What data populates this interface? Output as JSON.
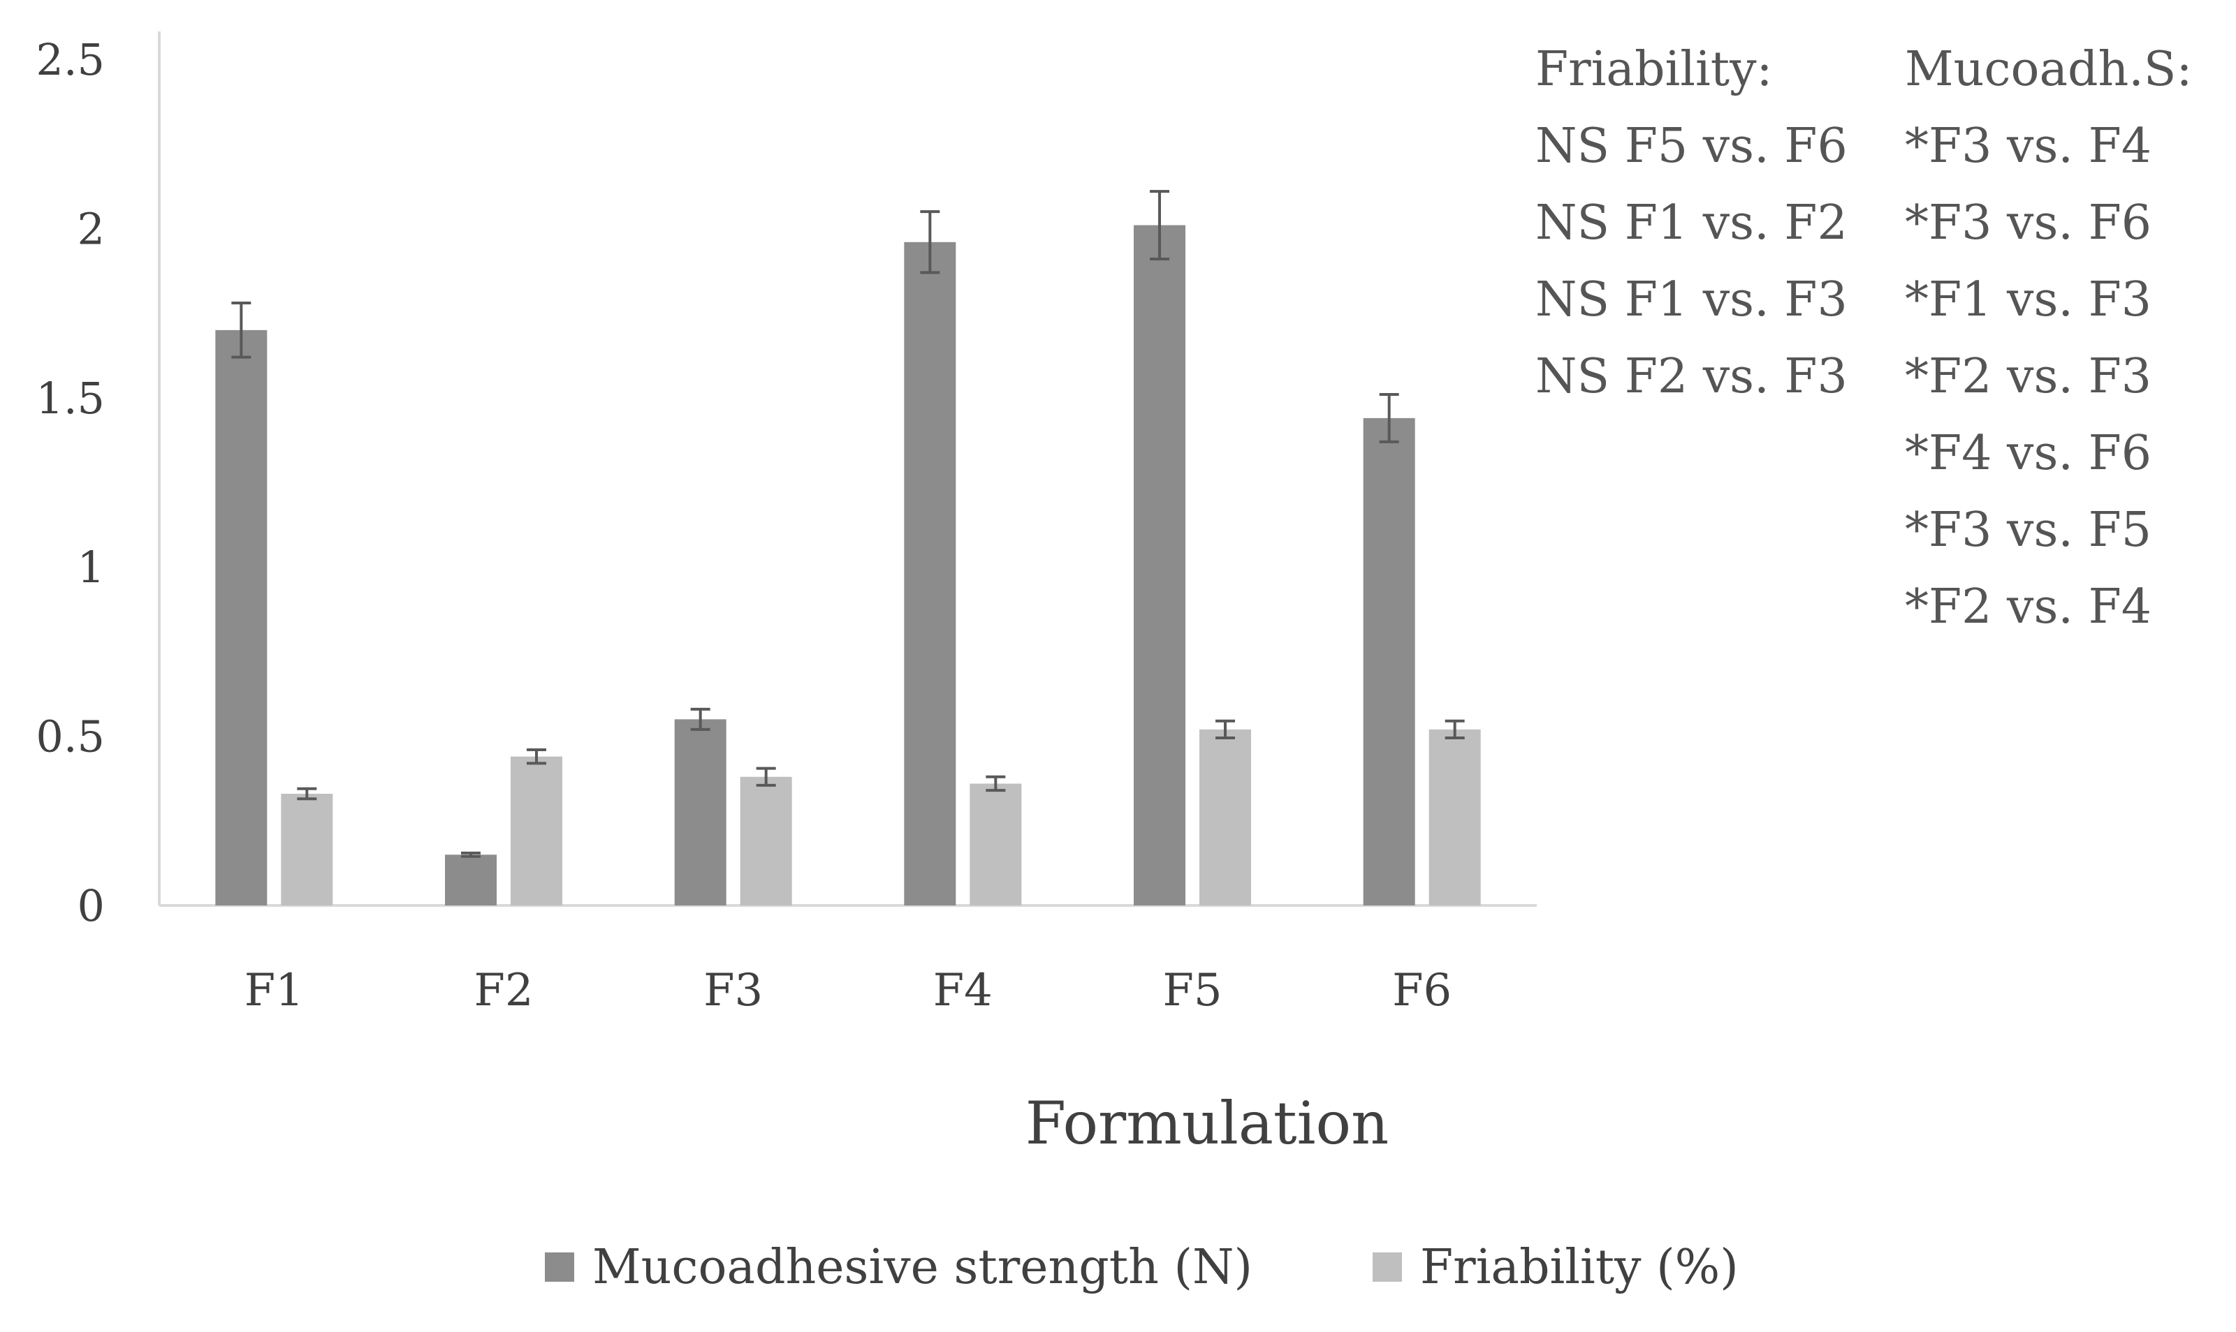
{
  "chart_data": {
    "type": "bar",
    "title": "",
    "xlabel": "Formulation",
    "ylabel": "",
    "ylim": [
      0,
      2.5
    ],
    "yticks": [
      "0",
      "0.5",
      "1",
      "1.5",
      "2",
      "2.5"
    ],
    "categories": [
      "F1",
      "F2",
      "F3",
      "F4",
      "F5",
      "F6"
    ],
    "series": [
      {
        "name": "Mucoadhesive strength (N)",
        "color": "#8c8c8c",
        "values": [
          1.7,
          0.15,
          0.55,
          1.96,
          2.01,
          1.44
        ],
        "errors": [
          0.08,
          0.005,
          0.03,
          0.09,
          0.1,
          0.07
        ]
      },
      {
        "name": "Friability (%)",
        "color": "#bfbfbf",
        "values": [
          0.33,
          0.44,
          0.38,
          0.36,
          0.52,
          0.52
        ],
        "errors": [
          0.015,
          0.02,
          0.025,
          0.02,
          0.025,
          0.025
        ]
      }
    ],
    "legend_position": "bottom",
    "annotations": {
      "friability": {
        "title": "Friability:",
        "items": [
          "NS F5 vs. F6",
          "NS F1 vs. F2",
          "NS F1 vs. F3",
          "NS F2 vs. F3"
        ]
      },
      "mucoadhesion": {
        "title": "Mucoadh.S:",
        "items": [
          "*F3 vs. F4",
          "*F3 vs. F6",
          "*F1 vs. F3",
          "*F2 vs. F3",
          "*F4 vs. F6",
          "*F3 vs. F5",
          "*F2 vs. F4"
        ]
      }
    }
  }
}
